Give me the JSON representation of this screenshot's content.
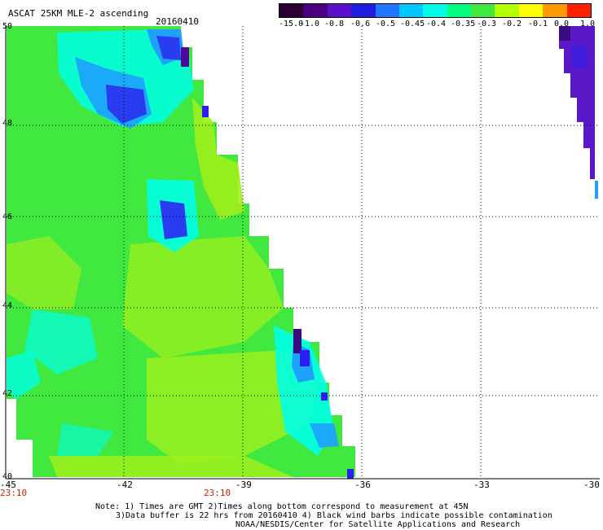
{
  "header": {
    "title": "ASCAT 25KM MLE-2 ascending",
    "date": "20160410"
  },
  "colorbar": {
    "labels": [
      "-15.0",
      "-1.0",
      "-0.8",
      "-0.6",
      "-0.5",
      "-0.45",
      "-0.4",
      "-0.35",
      "-0.3",
      "-0.2",
      "-0.1",
      "0.0",
      "1.0"
    ],
    "colors": [
      "#2a0033",
      "#4b0080",
      "#5a10c8",
      "#1e1ee0",
      "#1e78ff",
      "#00c8ff",
      "#00ffe6",
      "#00ff80",
      "#40e840",
      "#b4ff00",
      "#ffff00",
      "#ff9900",
      "#ff2000"
    ]
  },
  "map": {
    "lat_labels": [
      "50",
      "48",
      "46",
      "44",
      "42",
      "40"
    ],
    "lon_labels": [
      "-45",
      "-42",
      "-39",
      "-36",
      "-33",
      "-30"
    ],
    "time_labels": [
      "23:10",
      "23:10"
    ],
    "swath_colors": {
      "main": "#40e840",
      "yellow_green": "#9ef01c",
      "cyan": "#00ffe6",
      "light_blue": "#1ea0ff",
      "blue": "#2a3cf0",
      "purple": "#5a18c8",
      "dark_purple": "#3a0a80"
    }
  },
  "notes": {
    "line1": "Note: 1) Times are GMT 2)Times along bottom correspond to measurement at 45N",
    "line2": "3)Data buffer is 22 hrs from 20160410 4) Black wind barbs indicate possible contamination",
    "line3": "NOAA/NESDIS/Center for Satellite Applications and Research"
  }
}
